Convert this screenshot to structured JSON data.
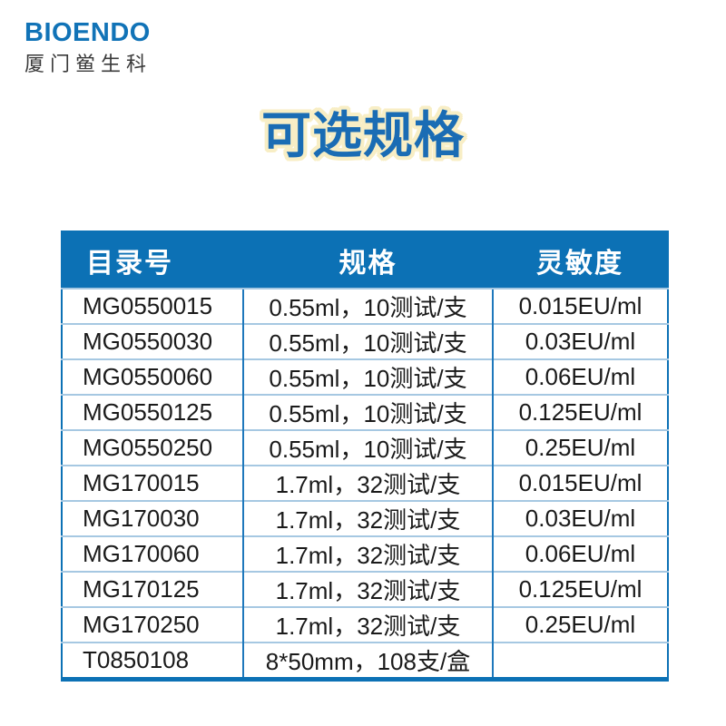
{
  "logo": {
    "brand": "BIOENDO",
    "subtitle": "厦门鲎生科"
  },
  "title": {
    "text": "可选规格"
  },
  "colors": {
    "primary_blue": "#0C71B5",
    "brand_blue": "#1173B7",
    "title_blue": "#1A6CB4",
    "title_outline_cream": "#F8EEC5",
    "row_separator_blue": "#A6C8E2",
    "column_separator_blue": "#1E78BC",
    "header_text": "#FFFFFF",
    "body_text": "#1A1A1A"
  },
  "table": {
    "headers": [
      "目录号",
      "规格",
      "灵敏度"
    ],
    "rows": [
      {
        "catalog": "MG0550015",
        "spec": "0.55ml，10测试/支",
        "sensitivity": "0.015EU/ml"
      },
      {
        "catalog": "MG0550030",
        "spec": "0.55ml，10测试/支",
        "sensitivity": "0.03EU/ml"
      },
      {
        "catalog": "MG0550060",
        "spec": "0.55ml，10测试/支",
        "sensitivity": "0.06EU/ml"
      },
      {
        "catalog": "MG0550125",
        "spec": "0.55ml，10测试/支",
        "sensitivity": "0.125EU/ml"
      },
      {
        "catalog": "MG0550250",
        "spec": "0.55ml，10测试/支",
        "sensitivity": "0.25EU/ml"
      },
      {
        "catalog": "MG170015",
        "spec": "1.7ml，32测试/支",
        "sensitivity": "0.015EU/ml"
      },
      {
        "catalog": "MG170030",
        "spec": "1.7ml，32测试/支",
        "sensitivity": "0.03EU/ml"
      },
      {
        "catalog": "MG170060",
        "spec": "1.7ml，32测试/支",
        "sensitivity": "0.06EU/ml"
      },
      {
        "catalog": "MG170125",
        "spec": "1.7ml，32测试/支",
        "sensitivity": "0.125EU/ml"
      },
      {
        "catalog": "MG170250",
        "spec": "1.7ml，32测试/支",
        "sensitivity": "0.25EU/ml"
      },
      {
        "catalog": "T0850108",
        "spec": "8*50mm，108支/盒",
        "sensitivity": ""
      }
    ]
  }
}
